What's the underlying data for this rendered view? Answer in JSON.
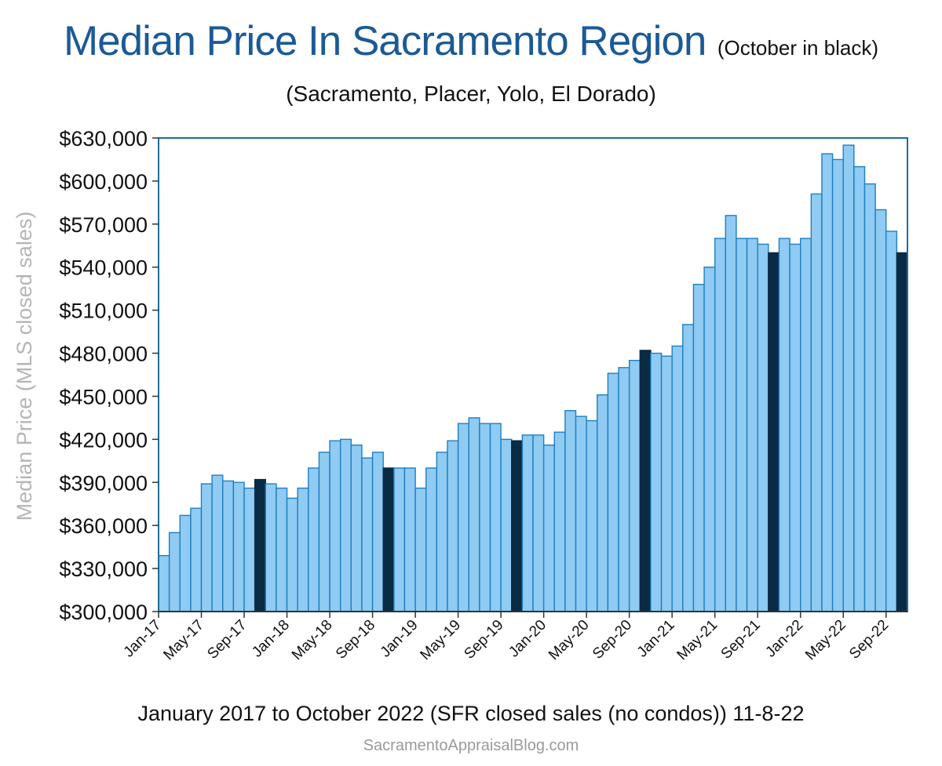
{
  "chart_data": {
    "type": "bar",
    "title": "Median Price In Sacramento Region",
    "title_note": "(October in black)",
    "subtitle": "(Sacramento,  Placer, Yolo, El Dorado)",
    "ylabel": "Median Price (MLS closed sales)",
    "xlabel": "January 2017 to October 2022 (SFR closed sales (no condos)) 11-8-22",
    "source": "SacramentoAppraisalBlog.com",
    "ylim": [
      300000,
      630000
    ],
    "yticks": [
      300000,
      330000,
      360000,
      390000,
      420000,
      450000,
      480000,
      510000,
      540000,
      570000,
      600000,
      630000
    ],
    "ytick_labels": [
      "$300,000",
      "$330,000",
      "$360,000",
      "$390,000",
      "$420,000",
      "$450,000",
      "$480,000",
      "$510,000",
      "$540,000",
      "$570,000",
      "$600,000",
      "$630,000"
    ],
    "xtick_labels": [
      "Jan-17",
      "May-17",
      "Sep-17",
      "Jan-18",
      "May-18",
      "Sep-18",
      "Jan-19",
      "May-19",
      "Sep-19",
      "Jan-20",
      "May-20",
      "Sep-20",
      "Jan-21",
      "May-21",
      "Sep-21",
      "Jan-22",
      "May-22",
      "Sep-22"
    ],
    "categories": [
      "Jan-17",
      "Feb-17",
      "Mar-17",
      "Apr-17",
      "May-17",
      "Jun-17",
      "Jul-17",
      "Aug-17",
      "Sep-17",
      "Oct-17",
      "Nov-17",
      "Dec-17",
      "Jan-18",
      "Feb-18",
      "Mar-18",
      "Apr-18",
      "May-18",
      "Jun-18",
      "Jul-18",
      "Aug-18",
      "Sep-18",
      "Oct-18",
      "Nov-18",
      "Dec-18",
      "Jan-19",
      "Feb-19",
      "Mar-19",
      "Apr-19",
      "May-19",
      "Jun-19",
      "Jul-19",
      "Aug-19",
      "Sep-19",
      "Oct-19",
      "Nov-19",
      "Dec-19",
      "Jan-20",
      "Feb-20",
      "Mar-20",
      "Apr-20",
      "May-20",
      "Jun-20",
      "Jul-20",
      "Aug-20",
      "Sep-20",
      "Oct-20",
      "Nov-20",
      "Dec-20",
      "Jan-21",
      "Feb-21",
      "Mar-21",
      "Apr-21",
      "May-21",
      "Jun-21",
      "Jul-21",
      "Aug-21",
      "Sep-21",
      "Oct-21",
      "Nov-21",
      "Dec-21",
      "Jan-22",
      "Feb-22",
      "Mar-22",
      "Apr-22",
      "May-22",
      "Jun-22",
      "Jul-22",
      "Aug-22",
      "Sep-22",
      "Oct-22"
    ],
    "values": [
      339000,
      355000,
      367000,
      372000,
      389000,
      395000,
      391000,
      390000,
      386000,
      392000,
      389000,
      386000,
      379000,
      386000,
      400000,
      411000,
      419000,
      420000,
      416000,
      407000,
      411000,
      400000,
      400000,
      400000,
      386000,
      400000,
      411000,
      419000,
      431000,
      435000,
      431000,
      431000,
      420000,
      419000,
      423000,
      423000,
      416000,
      425000,
      440000,
      436000,
      433000,
      451000,
      466000,
      470000,
      475000,
      482000,
      480000,
      478000,
      485000,
      500000,
      528000,
      540000,
      560000,
      576000,
      560000,
      560000,
      556000,
      550000,
      560000,
      556000,
      560000,
      591000,
      619000,
      615000,
      625000,
      610000,
      598000,
      580000,
      565000,
      550000
    ],
    "highlight_label": "October",
    "colors": {
      "bar": "#8fcbf2",
      "bar_edge": "#1f7fc1",
      "highlight": "#0b2a44",
      "axes_frame": "#1f6e96",
      "title": "#1b5a96"
    }
  }
}
